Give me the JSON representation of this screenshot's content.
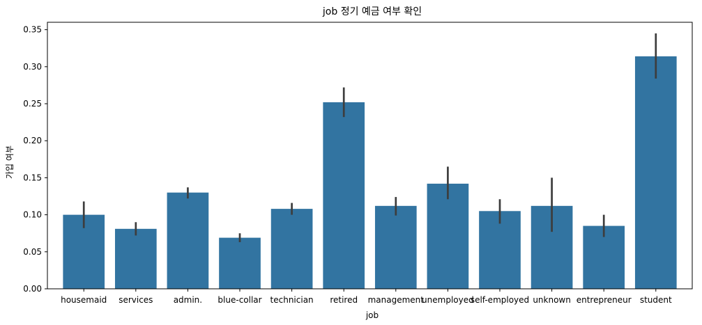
{
  "chart_data": {
    "type": "bar",
    "title": "job 정기 예금 여부 확인",
    "xlabel": "job",
    "ylabel": "가입 여부",
    "categories": [
      "housemaid",
      "services",
      "admin.",
      "blue-collar",
      "technician",
      "retired",
      "management",
      "unemployed",
      "self-employed",
      "unknown",
      "entrepreneur",
      "student"
    ],
    "values": [
      0.1,
      0.081,
      0.13,
      0.069,
      0.108,
      0.252,
      0.112,
      0.142,
      0.105,
      0.112,
      0.085,
      0.314
    ],
    "error_low": [
      0.082,
      0.072,
      0.122,
      0.063,
      0.1,
      0.232,
      0.099,
      0.121,
      0.088,
      0.077,
      0.07,
      0.284
    ],
    "error_high": [
      0.118,
      0.09,
      0.137,
      0.075,
      0.116,
      0.272,
      0.124,
      0.165,
      0.121,
      0.15,
      0.1,
      0.345
    ],
    "ylim": [
      0,
      0.36
    ],
    "yticks": [
      "0.00",
      "0.05",
      "0.10",
      "0.15",
      "0.20",
      "0.25",
      "0.30",
      "0.35"
    ],
    "ytick_values": [
      0,
      0.05,
      0.1,
      0.15,
      0.2,
      0.25,
      0.3,
      0.35
    ],
    "grid": false,
    "colors": {
      "bar": "#3274a1",
      "errorbar": "#3d3d3d"
    }
  }
}
